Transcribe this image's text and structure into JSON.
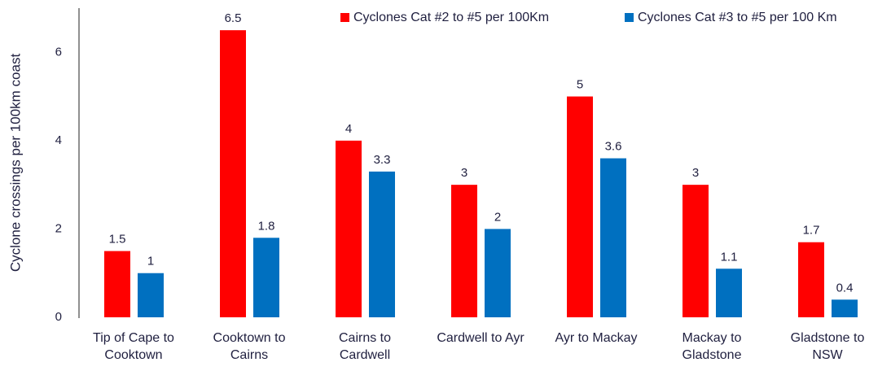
{
  "chart_data": {
    "type": "bar",
    "y_label": "Cyclone crossings per 100km coast",
    "categories": [
      "Tip of Cape to Cooktown",
      "Cooktown to Cairns",
      "Cairns to Cardwell",
      "Cardwell to Ayr",
      "Ayr to Mackay",
      "Mackay to Gladstone",
      "Gladstone to NSW"
    ],
    "series": [
      {
        "name": "Cyclones Cat #2 to #5 per 100Km",
        "color": "#ff0000",
        "values": [
          1.5,
          6.5,
          4,
          3,
          5,
          3,
          1.7
        ]
      },
      {
        "name": "Cyclones Cat #3 to #5 per 100 Km",
        "color": "#0070c0",
        "values": [
          1,
          1.8,
          3.3,
          2,
          3.6,
          1.1,
          0.4
        ]
      }
    ],
    "ylim": [
      0,
      7
    ],
    "yticks": [
      0,
      2,
      4,
      6
    ],
    "grid": false,
    "legend": "top-right"
  }
}
